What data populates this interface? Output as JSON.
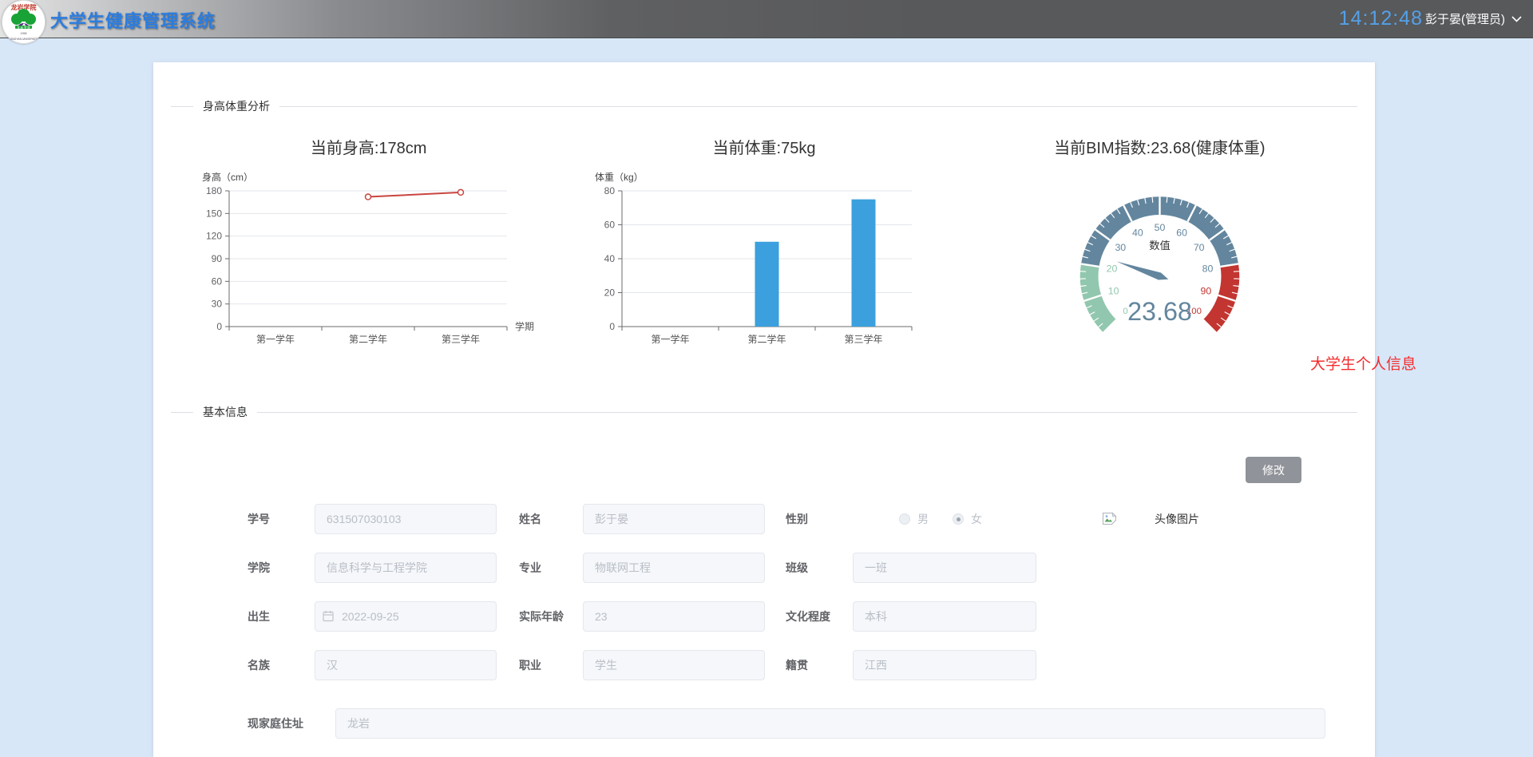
{
  "colors": {
    "header_title": "#2b7de0",
    "clock": "#54a0e8",
    "floating_title": "#f42d2d",
    "button_bg": "#909399",
    "page_bg": "#d7e7f8"
  },
  "header": {
    "app_title": "大学生健康管理系统",
    "clock": "14:12:48",
    "user": "彭于晏(管理员)"
  },
  "dividers": {
    "analysis": "身高体重分析",
    "basic": "基本信息"
  },
  "floating_title": "大学生个人信息",
  "chart_data": [
    {
      "type": "line",
      "title": "当前身高:178cm",
      "ylabel": "身高（cm）",
      "xlabel": "学期",
      "categories": [
        "第一学年",
        "第二学年",
        "第三学年"
      ],
      "values": [
        null,
        172,
        178
      ],
      "ylim": [
        0,
        180
      ],
      "ytick_step": 30,
      "color": "#c94540",
      "grid": true
    },
    {
      "type": "bar",
      "title": "当前体重:75kg",
      "ylabel": "体重（kg）",
      "xlabel": "",
      "categories": [
        "第一学年",
        "第二学年",
        "第三学年"
      ],
      "values": [
        0,
        50,
        75
      ],
      "ylim": [
        0,
        80
      ],
      "ytick_step": 20,
      "color": "#3ba0dd",
      "grid": true
    },
    {
      "type": "gauge",
      "title": "当前BIM指数:23.68(健康体重)",
      "name": "数值",
      "value": 23.68,
      "min": 0,
      "max": 100,
      "tick_step": 10,
      "sections": [
        {
          "to": 20,
          "color": "#91c7ae"
        },
        {
          "to": 80,
          "color": "#63869e"
        },
        {
          "to": 100,
          "color": "#c23531"
        }
      ]
    }
  ],
  "form": {
    "modify_button": "修改",
    "avatar_label": "头像图片",
    "fields": {
      "student_id": {
        "label": "学号",
        "value": "631507030103"
      },
      "name": {
        "label": "姓名",
        "value": "彭于晏"
      },
      "gender": {
        "label": "性别",
        "options": [
          {
            "label": "男",
            "selected": false
          },
          {
            "label": "女",
            "selected": true
          }
        ]
      },
      "college": {
        "label": "学院",
        "value": "信息科学与工程学院"
      },
      "major": {
        "label": "专业",
        "value": "物联网工程"
      },
      "class": {
        "label": "班级",
        "value": "一班"
      },
      "birth": {
        "label": "出生",
        "value": "2022-09-25"
      },
      "age": {
        "label": "实际年龄",
        "value": "23"
      },
      "education": {
        "label": "文化程度",
        "value": "本科"
      },
      "ethnicity": {
        "label": "名族",
        "value": "汉"
      },
      "occupation": {
        "label": "职业",
        "value": "学生"
      },
      "hometown": {
        "label": "籍贯",
        "value": "江西"
      },
      "address": {
        "label": "现家庭住址",
        "value": "龙岩"
      }
    }
  }
}
